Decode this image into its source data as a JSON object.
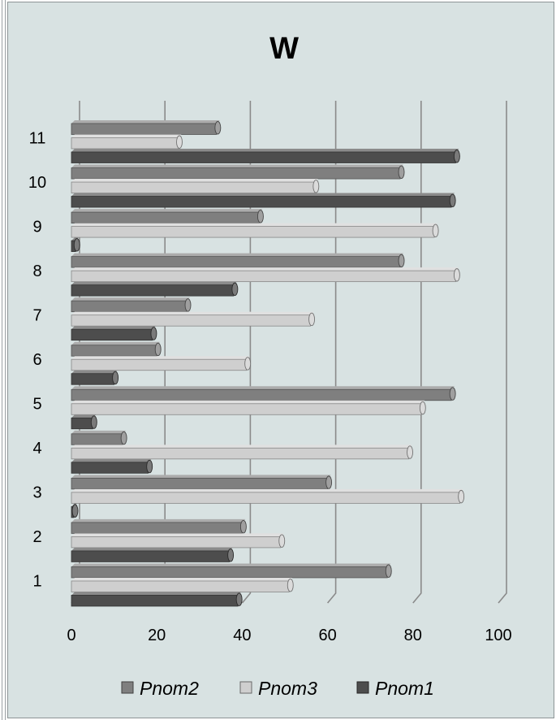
{
  "chart_data": {
    "type": "bar",
    "orientation": "horizontal",
    "style": "3d-cylinder",
    "title": "W",
    "categories": [
      "1",
      "2",
      "3",
      "4",
      "5",
      "6",
      "7",
      "8",
      "9",
      "10",
      "11"
    ],
    "series": [
      {
        "name": "Pnom2",
        "color": "#7f7f7f",
        "values": [
          74,
          40,
          60,
          12,
          89,
          20,
          27,
          77,
          44,
          77,
          34
        ]
      },
      {
        "name": "Pnom3",
        "color": "#cfcfcf",
        "values": [
          51,
          49,
          91,
          79,
          82,
          41,
          56,
          90,
          85,
          57,
          25
        ]
      },
      {
        "name": "Pnom1",
        "color": "#4d4d4d",
        "values": [
          39,
          37,
          0,
          18,
          5,
          10,
          19,
          38,
          1,
          89,
          90
        ]
      }
    ],
    "xlim": [
      0,
      100
    ],
    "xticks": [
      "0",
      "20",
      "40",
      "60",
      "80",
      "100"
    ],
    "grid": true,
    "legend_position": "bottom",
    "legend_order": [
      "Pnom2",
      "Pnom3",
      "Pnom1"
    ]
  }
}
